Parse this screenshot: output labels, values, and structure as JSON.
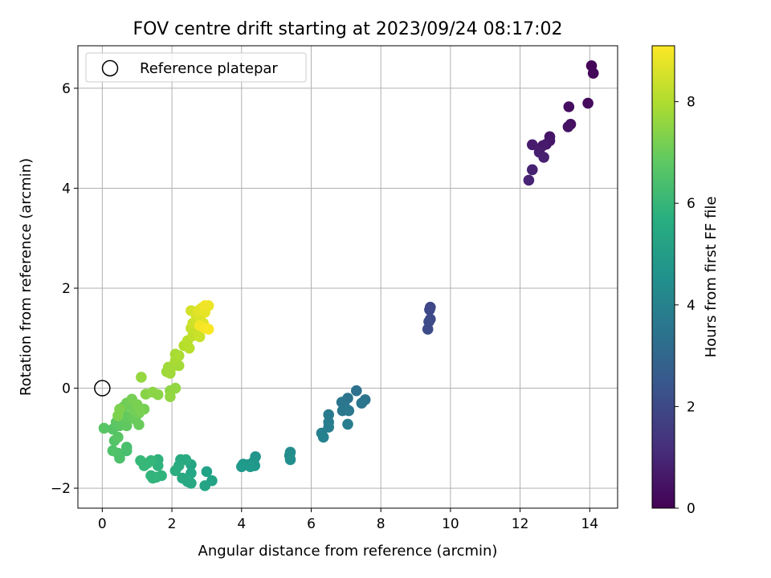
{
  "chart_data": {
    "type": "scatter",
    "title": "FOV centre drift starting at 2023/09/24 08:17:02",
    "xlabel": "Angular distance from reference (arcmin)",
    "ylabel": "Rotation from reference (arcmin)",
    "xlim": [
      -0.7,
      14.8
    ],
    "ylim": [
      -2.4,
      6.85
    ],
    "xticks": [
      0,
      2,
      4,
      6,
      8,
      10,
      12,
      14
    ],
    "xtick_labels": [
      "0",
      "2",
      "4",
      "6",
      "8",
      "10",
      "12",
      "14"
    ],
    "yticks": [
      -2,
      0,
      2,
      4,
      6
    ],
    "ytick_labels": [
      "−2",
      "0",
      "2",
      "4",
      "6"
    ],
    "grid": true,
    "legend": {
      "position": "top-left",
      "entries": [
        {
          "label": "Reference platepar",
          "marker": "open-circle"
        }
      ]
    },
    "reference_point": {
      "x": 0,
      "y": 0
    },
    "colorbar": {
      "label": "Hours from first FF file",
      "range": [
        0,
        9.1
      ],
      "ticks": [
        0,
        2,
        4,
        6,
        8
      ],
      "tick_labels": [
        "0",
        "2",
        "4",
        "6",
        "8"
      ],
      "colormap": "viridis"
    },
    "series": [
      {
        "points": [
          {
            "x": 14.05,
            "y": 6.45,
            "c": 0.1
          },
          {
            "x": 14.1,
            "y": 6.3,
            "c": 0.15
          },
          {
            "x": 13.95,
            "y": 5.7,
            "c": 0.25
          },
          {
            "x": 13.4,
            "y": 5.63,
            "c": 0.3
          },
          {
            "x": 13.45,
            "y": 5.28,
            "c": 0.4
          },
          {
            "x": 13.38,
            "y": 5.23,
            "c": 0.45
          },
          {
            "x": 12.85,
            "y": 5.03,
            "c": 0.5
          },
          {
            "x": 12.85,
            "y": 4.95,
            "c": 0.55
          },
          {
            "x": 12.75,
            "y": 4.88,
            "c": 0.6
          },
          {
            "x": 12.65,
            "y": 4.85,
            "c": 0.65
          },
          {
            "x": 12.35,
            "y": 4.87,
            "c": 0.7
          },
          {
            "x": 12.55,
            "y": 4.72,
            "c": 0.75
          },
          {
            "x": 12.68,
            "y": 4.62,
            "c": 0.8
          },
          {
            "x": 12.35,
            "y": 4.37,
            "c": 0.85
          },
          {
            "x": 12.25,
            "y": 4.16,
            "c": 0.9
          },
          {
            "x": 9.42,
            "y": 1.62,
            "c": 1.9
          },
          {
            "x": 9.4,
            "y": 1.57,
            "c": 1.95
          },
          {
            "x": 9.42,
            "y": 1.38,
            "c": 2.0
          },
          {
            "x": 9.38,
            "y": 1.33,
            "c": 2.05
          },
          {
            "x": 9.35,
            "y": 1.18,
            "c": 2.1
          },
          {
            "x": 7.3,
            "y": -0.05,
            "c": 3.4
          },
          {
            "x": 7.55,
            "y": -0.23,
            "c": 3.45
          },
          {
            "x": 7.05,
            "y": -0.2,
            "c": 3.5
          },
          {
            "x": 6.88,
            "y": -0.28,
            "c": 3.55
          },
          {
            "x": 7.45,
            "y": -0.3,
            "c": 3.55
          },
          {
            "x": 6.95,
            "y": -0.35,
            "c": 3.6
          },
          {
            "x": 6.9,
            "y": -0.45,
            "c": 3.65
          },
          {
            "x": 7.08,
            "y": -0.45,
            "c": 3.7
          },
          {
            "x": 6.5,
            "y": -0.53,
            "c": 3.75
          },
          {
            "x": 6.5,
            "y": -0.68,
            "c": 3.8
          },
          {
            "x": 7.05,
            "y": -0.72,
            "c": 3.85
          },
          {
            "x": 6.5,
            "y": -0.78,
            "c": 3.9
          },
          {
            "x": 6.3,
            "y": -0.9,
            "c": 3.95
          },
          {
            "x": 6.35,
            "y": -0.98,
            "c": 4.0
          },
          {
            "x": 5.4,
            "y": -1.28,
            "c": 4.4
          },
          {
            "x": 5.38,
            "y": -1.35,
            "c": 4.45
          },
          {
            "x": 5.4,
            "y": -1.43,
            "c": 4.5
          },
          {
            "x": 4.4,
            "y": -1.37,
            "c": 4.7
          },
          {
            "x": 4.35,
            "y": -1.47,
            "c": 4.75
          },
          {
            "x": 4.2,
            "y": -1.53,
            "c": 4.8
          },
          {
            "x": 4.05,
            "y": -1.52,
            "c": 4.85
          },
          {
            "x": 4.38,
            "y": -1.55,
            "c": 4.85
          },
          {
            "x": 4.0,
            "y": -1.57,
            "c": 4.9
          },
          {
            "x": 4.25,
            "y": -1.57,
            "c": 4.9
          },
          {
            "x": 3.0,
            "y": -1.67,
            "c": 5.2
          },
          {
            "x": 3.15,
            "y": -1.85,
            "c": 5.25
          },
          {
            "x": 2.95,
            "y": -1.95,
            "c": 5.3
          },
          {
            "x": 2.55,
            "y": -1.53,
            "c": 5.35
          },
          {
            "x": 2.55,
            "y": -1.7,
            "c": 5.4
          },
          {
            "x": 2.45,
            "y": -1.87,
            "c": 5.45
          },
          {
            "x": 2.55,
            "y": -1.9,
            "c": 5.45
          },
          {
            "x": 2.4,
            "y": -1.83,
            "c": 5.5
          },
          {
            "x": 2.3,
            "y": -1.8,
            "c": 5.5
          },
          {
            "x": 2.25,
            "y": -1.43,
            "c": 5.55
          },
          {
            "x": 2.4,
            "y": -1.43,
            "c": 5.55
          },
          {
            "x": 2.2,
            "y": -1.55,
            "c": 5.6
          },
          {
            "x": 2.1,
            "y": -1.65,
            "c": 5.65
          },
          {
            "x": 1.6,
            "y": -1.43,
            "c": 5.8
          },
          {
            "x": 1.6,
            "y": -1.55,
            "c": 5.85
          },
          {
            "x": 1.7,
            "y": -1.75,
            "c": 5.9
          },
          {
            "x": 1.55,
            "y": -1.78,
            "c": 5.9
          },
          {
            "x": 1.4,
            "y": -1.75,
            "c": 5.95
          },
          {
            "x": 1.45,
            "y": -1.8,
            "c": 5.95
          },
          {
            "x": 1.4,
            "y": -1.45,
            "c": 6.0
          },
          {
            "x": 1.3,
            "y": -1.5,
            "c": 6.05
          },
          {
            "x": 1.1,
            "y": -1.45,
            "c": 6.1
          },
          {
            "x": 1.2,
            "y": -1.55,
            "c": 6.1
          },
          {
            "x": 0.7,
            "y": -1.25,
            "c": 6.4
          },
          {
            "x": 0.7,
            "y": -1.18,
            "c": 6.45
          },
          {
            "x": 0.5,
            "y": -1.4,
            "c": 6.5
          },
          {
            "x": 0.45,
            "y": -1.3,
            "c": 6.5
          },
          {
            "x": 0.3,
            "y": -1.25,
            "c": 6.55
          },
          {
            "x": 0.35,
            "y": -1.05,
            "c": 6.6
          },
          {
            "x": 0.3,
            "y": -0.82,
            "c": 6.65
          },
          {
            "x": 0.05,
            "y": -0.8,
            "c": 6.7
          },
          {
            "x": 0.45,
            "y": -0.98,
            "c": 6.7
          },
          {
            "x": 0.5,
            "y": -0.75,
            "c": 6.75
          },
          {
            "x": 0.4,
            "y": -0.68,
            "c": 6.75
          },
          {
            "x": 0.55,
            "y": -0.65,
            "c": 6.8
          },
          {
            "x": 0.7,
            "y": -0.75,
            "c": 6.85
          },
          {
            "x": 0.6,
            "y": -0.52,
            "c": 6.9
          },
          {
            "x": 0.75,
            "y": -0.6,
            "c": 6.9
          },
          {
            "x": 0.85,
            "y": -0.55,
            "c": 6.95
          },
          {
            "x": 0.95,
            "y": -0.62,
            "c": 7.0
          },
          {
            "x": 1.05,
            "y": -0.73,
            "c": 7.0
          },
          {
            "x": 0.6,
            "y": -0.38,
            "c": 7.05
          },
          {
            "x": 0.7,
            "y": -0.3,
            "c": 7.1
          },
          {
            "x": 0.85,
            "y": -0.38,
            "c": 7.1
          },
          {
            "x": 0.95,
            "y": -0.47,
            "c": 7.15
          },
          {
            "x": 1.05,
            "y": -0.5,
            "c": 7.15
          },
          {
            "x": 1.2,
            "y": -0.42,
            "c": 7.2
          },
          {
            "x": 0.85,
            "y": -0.22,
            "c": 7.2
          },
          {
            "x": 1.0,
            "y": -0.33,
            "c": 7.25
          },
          {
            "x": 1.1,
            "y": -0.45,
            "c": 7.25
          },
          {
            "x": 0.45,
            "y": -0.55,
            "c": 7.3
          },
          {
            "x": 0.5,
            "y": -0.42,
            "c": 7.3
          },
          {
            "x": 1.25,
            "y": -0.12,
            "c": 7.45
          },
          {
            "x": 1.45,
            "y": -0.08,
            "c": 7.5
          },
          {
            "x": 1.6,
            "y": -0.13,
            "c": 7.5
          },
          {
            "x": 1.95,
            "y": -0.05,
            "c": 7.55
          },
          {
            "x": 2.1,
            "y": 0.0,
            "c": 7.6
          },
          {
            "x": 1.95,
            "y": -0.17,
            "c": 7.6
          },
          {
            "x": 1.12,
            "y": 0.22,
            "c": 7.65
          },
          {
            "x": 1.85,
            "y": 0.33,
            "c": 7.75
          },
          {
            "x": 1.95,
            "y": 0.3,
            "c": 7.8
          },
          {
            "x": 1.9,
            "y": 0.42,
            "c": 7.8
          },
          {
            "x": 2.05,
            "y": 0.45,
            "c": 7.85
          },
          {
            "x": 2.2,
            "y": 0.45,
            "c": 7.85
          },
          {
            "x": 2.1,
            "y": 0.55,
            "c": 7.9
          },
          {
            "x": 2.1,
            "y": 0.68,
            "c": 7.9
          },
          {
            "x": 2.2,
            "y": 0.65,
            "c": 7.95
          },
          {
            "x": 2.35,
            "y": 0.85,
            "c": 8.1
          },
          {
            "x": 2.45,
            "y": 0.95,
            "c": 8.15
          },
          {
            "x": 2.5,
            "y": 0.8,
            "c": 8.15
          },
          {
            "x": 2.6,
            "y": 1.05,
            "c": 8.25
          },
          {
            "x": 2.55,
            "y": 1.2,
            "c": 8.3
          },
          {
            "x": 2.7,
            "y": 1.15,
            "c": 8.35
          },
          {
            "x": 2.8,
            "y": 1.03,
            "c": 8.4
          },
          {
            "x": 2.6,
            "y": 1.3,
            "c": 8.45
          },
          {
            "x": 2.55,
            "y": 1.55,
            "c": 8.5
          },
          {
            "x": 2.7,
            "y": 1.45,
            "c": 8.55
          },
          {
            "x": 2.8,
            "y": 1.4,
            "c": 8.6
          },
          {
            "x": 2.9,
            "y": 1.3,
            "c": 8.65
          },
          {
            "x": 2.75,
            "y": 1.55,
            "c": 8.7
          },
          {
            "x": 2.85,
            "y": 1.6,
            "c": 8.75
          },
          {
            "x": 2.95,
            "y": 1.52,
            "c": 8.8
          },
          {
            "x": 3.05,
            "y": 1.65,
            "c": 8.85
          },
          {
            "x": 2.95,
            "y": 1.65,
            "c": 8.9
          },
          {
            "x": 2.8,
            "y": 1.25,
            "c": 8.95
          },
          {
            "x": 2.95,
            "y": 1.2,
            "c": 9.0
          },
          {
            "x": 3.05,
            "y": 1.18,
            "c": 9.05
          }
        ]
      }
    ]
  }
}
